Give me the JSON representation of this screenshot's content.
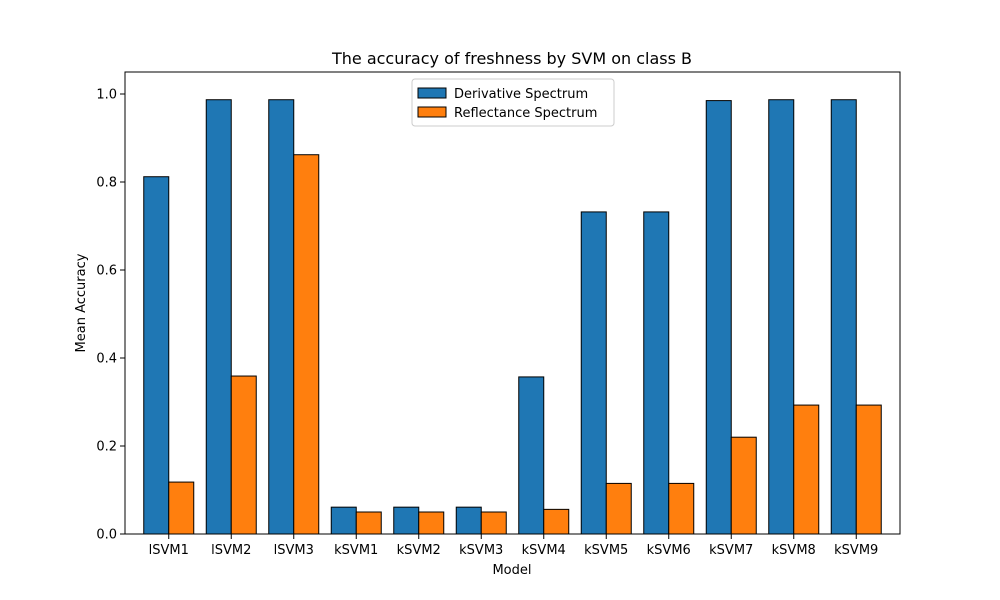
{
  "chart_data": {
    "type": "bar",
    "title": "The accuracy of freshness by SVM on class B",
    "xlabel": "Model",
    "ylabel": "Mean Accuracy",
    "ylim": [
      0,
      1.05
    ],
    "yticks": [
      "0.0",
      "0.2",
      "0.4",
      "0.6",
      "0.8",
      "1.0"
    ],
    "categories": [
      "lSVM1",
      "lSVM2",
      "lSVM3",
      "kSVM1",
      "kSVM2",
      "kSVM3",
      "kSVM4",
      "kSVM5",
      "kSVM6",
      "kSVM7",
      "kSVM8",
      "kSVM9"
    ],
    "series": [
      {
        "name": "Derivative Spectrum",
        "color": "#1f77b4",
        "values": [
          0.812,
          0.987,
          0.987,
          0.061,
          0.061,
          0.061,
          0.357,
          0.732,
          0.732,
          0.985,
          0.987,
          0.987
        ]
      },
      {
        "name": "Reflectance Spectrum",
        "color": "#ff7f0e",
        "values": [
          0.118,
          0.359,
          0.862,
          0.05,
          0.05,
          0.05,
          0.056,
          0.115,
          0.115,
          0.22,
          0.293,
          0.293
        ]
      }
    ],
    "legend_position": "top-center",
    "grid": false
  }
}
